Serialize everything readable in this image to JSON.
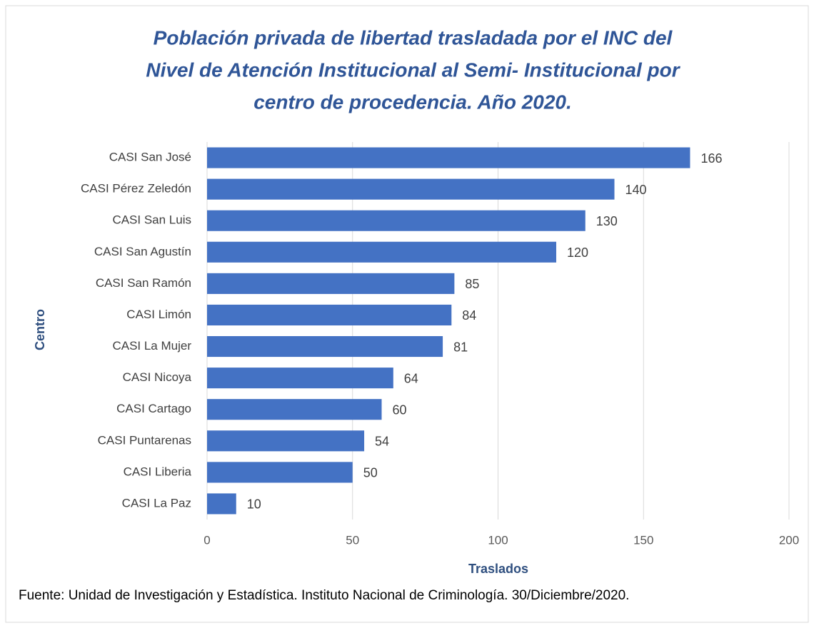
{
  "chart_data": {
    "type": "barh",
    "title": [
      "Población privada de libertad trasladada por el INC del",
      "Nivel de Atención Institucional al Semi- Institucional por",
      "centro de procedencia. Año 2020."
    ],
    "categories": [
      "CASI San José",
      "CASI Pérez Zeledón",
      "CASI San Luis",
      "CASI San Agustín",
      "CASI San Ramón",
      "CASI Limón",
      "CASI La Mujer",
      "CASI Nicoya",
      "CASI Cartago",
      "CASI Puntarenas",
      "CASI Liberia",
      "CASI La Paz"
    ],
    "values": [
      166,
      140,
      130,
      120,
      85,
      84,
      81,
      64,
      60,
      54,
      50,
      10
    ],
    "color": "#4472c4",
    "xlim": [
      0,
      200
    ],
    "xticks": [
      0,
      50,
      100,
      150,
      200
    ],
    "grid": true,
    "xlabel": "Traslados",
    "ylabel": "Centro",
    "source": "Fuente: Unidad de Investigación y Estadística. Instituto Nacional de Criminología. 30/Diciembre/2020."
  }
}
